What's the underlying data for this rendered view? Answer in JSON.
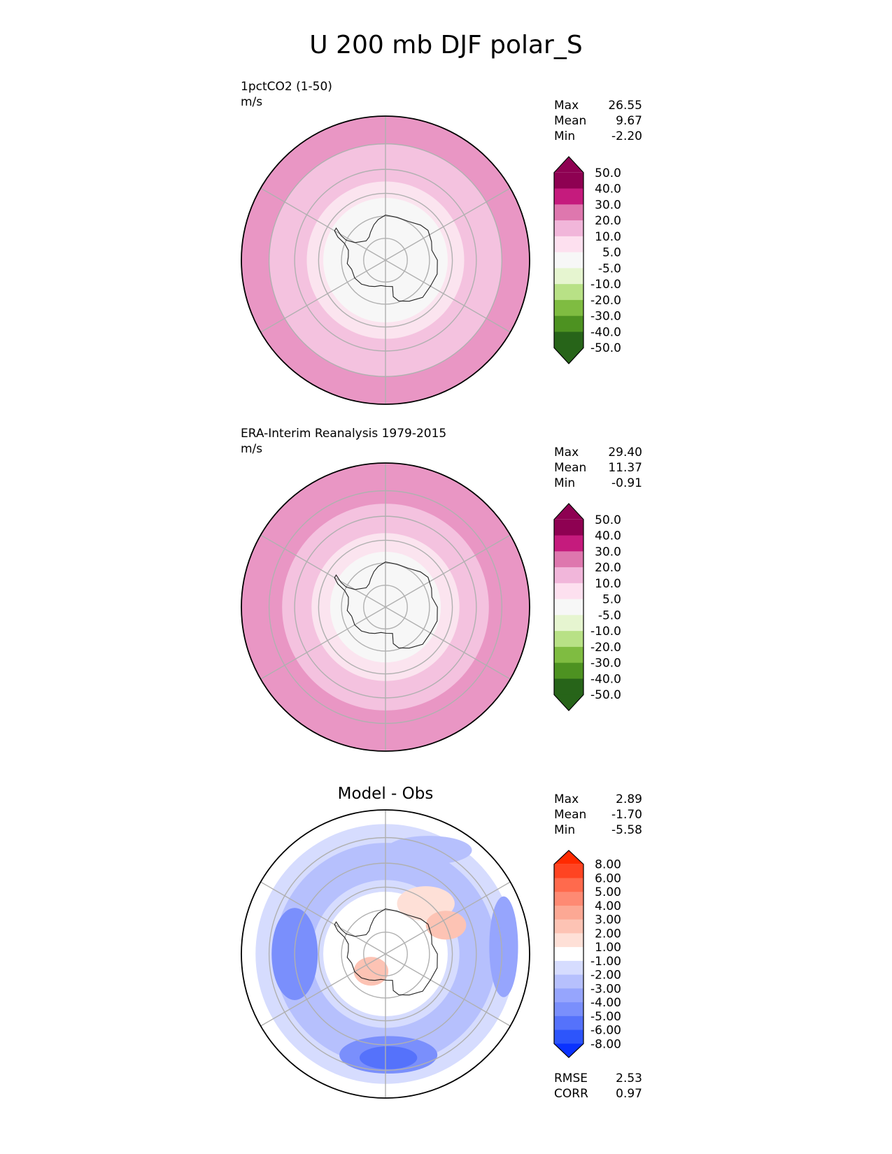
{
  "title": "U 200 mb DJF polar_S",
  "chart_data": [
    {
      "type": "heatmap",
      "projection": "south-polar-stereographic",
      "subtitle": "1pctCO2 (1-50)",
      "units": "m/s",
      "stats": [
        {
          "label": "Max",
          "value": "26.55"
        },
        {
          "label": "Mean",
          "value": "9.67"
        },
        {
          "label": "Min",
          "value": "-2.20"
        }
      ],
      "colorbar": {
        "ticks": [
          "50.0",
          "40.0",
          "30.0",
          "20.0",
          "10.0",
          "5.0",
          "-5.0",
          "-10.0",
          "-20.0",
          "-30.0",
          "-40.0",
          "-50.0"
        ],
        "colors": [
          "#8e0152",
          "#c51b7d",
          "#de77ae",
          "#f1b6da",
          "#fde0ef",
          "#f7f7f7",
          "#e6f5d0",
          "#b8e186",
          "#7fbc41",
          "#4d9221",
          "#276419"
        ],
        "extend_top": "#8e0152",
        "extend_bottom": "#276419"
      },
      "rings": [
        {
          "fill": "#e996c4",
          "lat": -30
        },
        {
          "fill": "#f4c2df",
          "lat": -40
        },
        {
          "fill": "#fbe4ef",
          "lat": -55
        },
        {
          "fill": "#f7f7f7",
          "lat": -62
        }
      ]
    },
    {
      "type": "heatmap",
      "projection": "south-polar-stereographic",
      "subtitle": "ERA-Interim Reanalysis 1979-2015",
      "units": "m/s",
      "stats": [
        {
          "label": "Max",
          "value": "29.40"
        },
        {
          "label": "Mean",
          "value": "11.37"
        },
        {
          "label": "Min",
          "value": "-0.91"
        }
      ],
      "colorbar": {
        "ticks": [
          "50.0",
          "40.0",
          "30.0",
          "20.0",
          "10.0",
          "5.0",
          "-5.0",
          "-10.0",
          "-20.0",
          "-30.0",
          "-40.0",
          "-50.0"
        ],
        "colors": [
          "#8e0152",
          "#c51b7d",
          "#de77ae",
          "#f1b6da",
          "#fde0ef",
          "#f7f7f7",
          "#e6f5d0",
          "#b8e186",
          "#7fbc41",
          "#4d9221",
          "#276419"
        ],
        "extend_top": "#8e0152",
        "extend_bottom": "#276419"
      },
      "rings": [
        {
          "fill": "#e996c4",
          "lat": -30
        },
        {
          "fill": "#f4c2df",
          "lat": -45
        },
        {
          "fill": "#fbe4ef",
          "lat": -57
        },
        {
          "fill": "#f7f7f7",
          "lat": -65
        }
      ]
    },
    {
      "type": "heatmap",
      "projection": "south-polar-stereographic",
      "title": "Model - Obs",
      "stats": [
        {
          "label": "Max",
          "value": "2.89"
        },
        {
          "label": "Mean",
          "value": "-1.70"
        },
        {
          "label": "Min",
          "value": "-5.58"
        }
      ],
      "colorbar": {
        "ticks": [
          "8.00",
          "6.00",
          "5.00",
          "4.00",
          "3.00",
          "2.00",
          "1.00",
          "-1.00",
          "-2.00",
          "-3.00",
          "-4.00",
          "-5.00",
          "-6.00",
          "-8.00"
        ],
        "colors": [
          "#ff4422",
          "#ff6a4d",
          "#fe8a73",
          "#fca894",
          "#fdc3b4",
          "#fee0d7",
          "#ffffff",
          "#d6dcfe",
          "#b6c0fd",
          "#96a5fd",
          "#7a8ffc",
          "#5572fb",
          "#2d55fb"
        ],
        "extend_top": "#ff2a00",
        "extend_bottom": "#0a32ff"
      },
      "rings": [
        {
          "fill": "#ffffff",
          "lat": -30
        },
        {
          "fill": "#d6dcfe",
          "lat": -35
        },
        {
          "fill": "#b6c0fd",
          "lat": -42
        },
        {
          "fill": "#d6dcfe",
          "lat": -57
        },
        {
          "fill": "#ffffff",
          "lat": -62
        }
      ],
      "extra_stats": [
        {
          "label": "RMSE",
          "value": "2.53"
        },
        {
          "label": "CORR",
          "value": "0.97"
        }
      ]
    }
  ]
}
